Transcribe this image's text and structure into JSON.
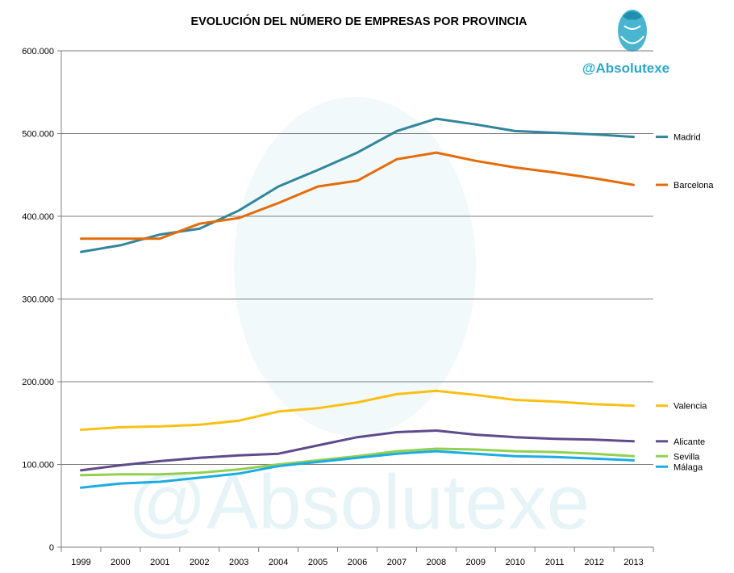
{
  "brand": {
    "handle": "@Absolutexe",
    "color": "#2aa8c8",
    "logo_icon": "griffin-logo-icon",
    "watermark_color": "#e6f4f8"
  },
  "chart_data": {
    "type": "line",
    "title": "EVOLUCIÓN DEL NÚMERO DE EMPRESAS POR PROVINCIA",
    "xlabel": "",
    "ylabel": "",
    "x": [
      1999,
      2000,
      2001,
      2002,
      2003,
      2004,
      2005,
      2006,
      2007,
      2008,
      2009,
      2010,
      2011,
      2012,
      2013
    ],
    "x_tick_labels": [
      "1999",
      "2000",
      "2001",
      "2002",
      "2003",
      "2004",
      "2005",
      "2006",
      "2007",
      "2008",
      "2009",
      "2010",
      "2011",
      "2012",
      "2013"
    ],
    "ylim": [
      0,
      600000
    ],
    "y_ticks": [
      0,
      100000,
      200000,
      300000,
      400000,
      500000,
      600000
    ],
    "y_tick_labels": [
      "0",
      "100.000",
      "200.000",
      "300.000",
      "400.000",
      "500.000",
      "600.000"
    ],
    "grid": "horizontal",
    "legend": "right, at line ends",
    "series": [
      {
        "name": "Madrid",
        "color": "#31859c",
        "values": [
          357000,
          365000,
          378000,
          385000,
          407000,
          436000,
          456000,
          477000,
          503000,
          518000,
          511000,
          503000,
          501000,
          499000,
          496000
        ]
      },
      {
        "name": "Barcelona",
        "color": "#e46c0a",
        "values": [
          373000,
          373000,
          373000,
          391000,
          398000,
          416000,
          436000,
          443000,
          469000,
          477000,
          467000,
          459000,
          453000,
          446000,
          438000
        ]
      },
      {
        "name": "Valencia",
        "color": "#f9c013",
        "values": [
          142000,
          145000,
          146000,
          148000,
          153000,
          164000,
          168000,
          175000,
          185000,
          189000,
          184000,
          178000,
          176000,
          173000,
          171000
        ]
      },
      {
        "name": "Alicante",
        "color": "#5f4b8b",
        "values": [
          93000,
          99000,
          104000,
          108000,
          111000,
          113000,
          123000,
          133000,
          139000,
          141000,
          136000,
          133000,
          131000,
          130000,
          128000
        ]
      },
      {
        "name": "Sevilla",
        "color": "#92d050",
        "values": [
          87000,
          88000,
          88000,
          90000,
          94000,
          100000,
          105000,
          110000,
          116000,
          119000,
          118000,
          116000,
          115000,
          113000,
          110000
        ]
      },
      {
        "name": "Málaga",
        "color": "#1cabe2",
        "values": [
          72000,
          77000,
          79000,
          84000,
          89000,
          98000,
          103000,
          108000,
          113000,
          116000,
          113000,
          110000,
          109000,
          107000,
          105000
        ]
      }
    ]
  }
}
